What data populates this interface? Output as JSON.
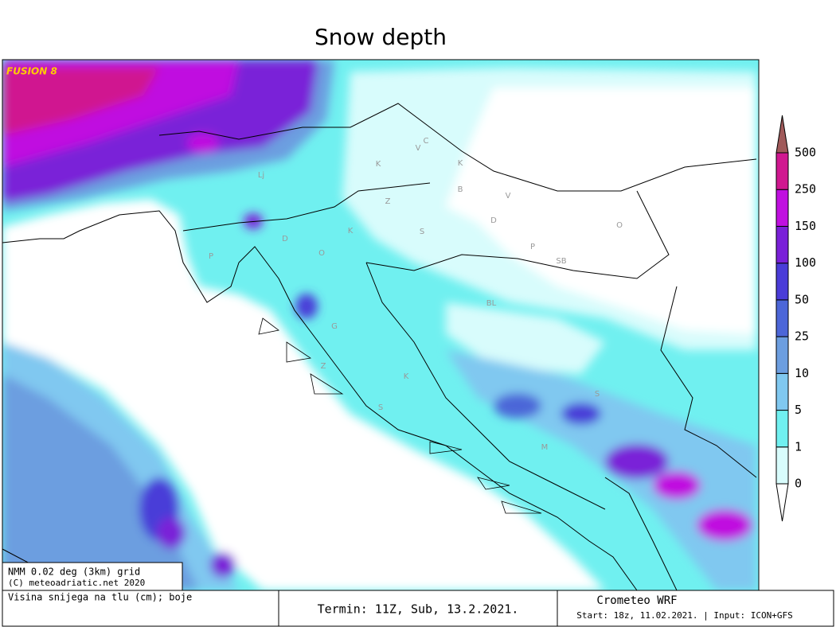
{
  "title": "Snow depth",
  "model_tag": "FUSION 8",
  "map_labels": [
    "Lj",
    "P",
    "D",
    "O",
    "K",
    "Z",
    "K",
    "V",
    "C",
    "K",
    "B",
    "V",
    "D",
    "S",
    "P",
    "SB",
    "O",
    "BL",
    "G",
    "Z",
    "K",
    "S",
    "S",
    "M"
  ],
  "legend": {
    "labels": [
      0,
      1,
      5,
      10,
      25,
      50,
      100,
      150,
      250,
      500
    ],
    "colors": [
      "#ffffff",
      "#d8fcfc",
      "#70f0f0",
      "#80c8f0",
      "#6c9ee0",
      "#4c66d8",
      "#4a3cd8",
      "#7a20d8",
      "#c010e0",
      "#d01890",
      "#a05a5a"
    ]
  },
  "info": {
    "grid": "NMM 0.02 deg (3km) grid",
    "copyright": "(C) meteoadriatic.net 2020"
  },
  "footer": {
    "variable": "Visina snijega na tlu (cm); boje",
    "termin": "Termin: 11Z, Sub, 13.2.2021.",
    "model": "Crometeo WRF",
    "run": "Start: 18z, 11.02.2021. | Input: ICON+GFS"
  }
}
